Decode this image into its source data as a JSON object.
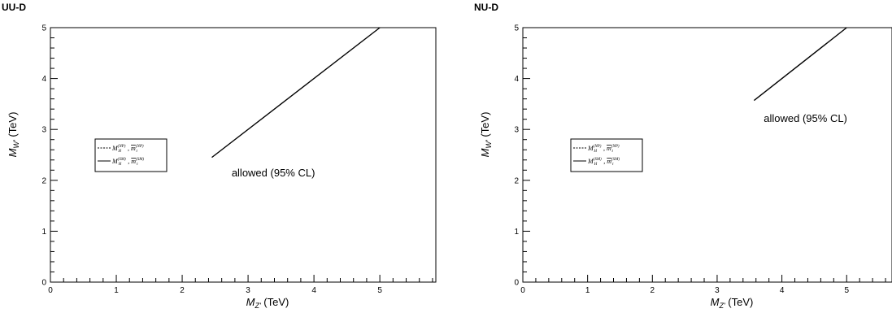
{
  "chart_data": [
    {
      "type": "line",
      "title": "UU-D",
      "xlabel": "M",
      "xlabel_sub": "Z'",
      "xlabel_unit": " (TeV)",
      "ylabel": "M",
      "ylabel_sub": "W'",
      "ylabel_unit": " (TeV)",
      "xlim": [
        0,
        5.85
      ],
      "ylim": [
        0,
        5
      ],
      "xticks": [
        0,
        1,
        2,
        3,
        4,
        5
      ],
      "yticks": [
        0,
        1,
        2,
        3,
        4,
        5
      ],
      "series": [
        {
          "style": "solid",
          "x": [
            2.45,
            5.0
          ],
          "y": [
            2.45,
            5.0
          ]
        }
      ],
      "legend": {
        "position": "center-left",
        "entries": [
          {
            "style": "dashed",
            "a": "M",
            "a_sub": "H",
            "a_sup": "(NP)",
            "b": "m",
            "b_sub": "t",
            "b_sup": "(NP)"
          },
          {
            "style": "solid",
            "a": "M",
            "a_sub": "H",
            "a_sup": "(SM)",
            "b": "m",
            "b_sub": "t",
            "b_sup": "(SM)"
          }
        ]
      },
      "annotation": {
        "text": "allowed (95% CL)",
        "x": 2.75,
        "y": 2.08
      }
    },
    {
      "type": "line",
      "title": "NU-D",
      "xlabel": "M",
      "xlabel_sub": "Z'",
      "xlabel_unit": " (TeV)",
      "ylabel": "M",
      "ylabel_sub": "W'",
      "ylabel_unit": " (TeV)",
      "xlim": [
        0,
        5.7
      ],
      "ylim": [
        0,
        5
      ],
      "xticks": [
        0,
        1,
        2,
        3,
        4,
        5
      ],
      "yticks": [
        0,
        1,
        2,
        3,
        4,
        5
      ],
      "series": [
        {
          "style": "solid",
          "x": [
            3.57,
            5.0
          ],
          "y": [
            3.57,
            5.0
          ]
        }
      ],
      "legend": {
        "position": "center-left",
        "entries": [
          {
            "style": "dashed",
            "a": "M",
            "a_sub": "H",
            "a_sup": "(NP)",
            "b": "m",
            "b_sub": "t",
            "b_sup": "(NP)"
          },
          {
            "style": "solid",
            "a": "M",
            "a_sub": "H",
            "a_sup": "(SM)",
            "b": "m",
            "b_sub": "t",
            "b_sup": "(SM)"
          }
        ]
      },
      "annotation": {
        "text": "allowed (95% CL)",
        "x": 3.72,
        "y": 3.15
      }
    }
  ]
}
